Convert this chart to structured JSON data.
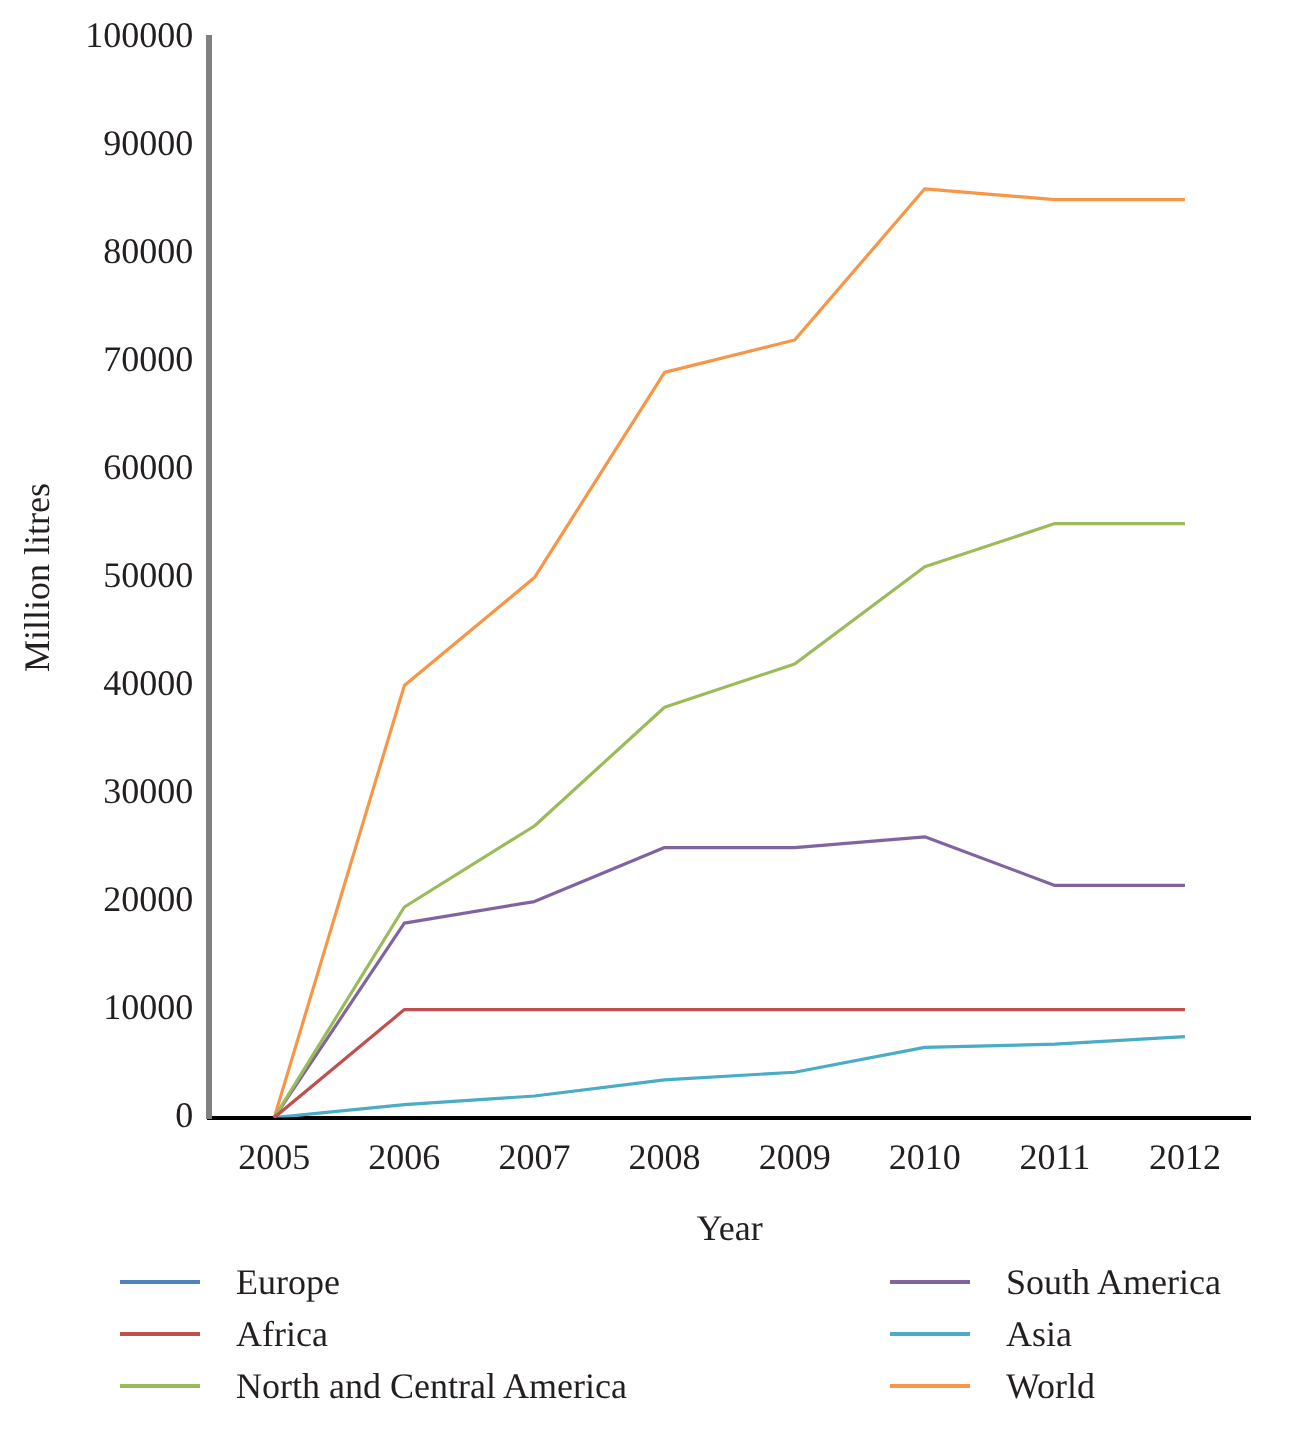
{
  "chart_data": {
    "type": "line",
    "xlabel": "Year",
    "ylabel": "Million litres",
    "categories": [
      "2005",
      "2006",
      "2007",
      "2008",
      "2009",
      "2010",
      "2011",
      "2012"
    ],
    "series": [
      {
        "name": "Europe",
        "color": "#4f81bd",
        "values": [
          null,
          null,
          null,
          null,
          null,
          null,
          null,
          null
        ]
      },
      {
        "name": "Africa",
        "color": "#c0504d",
        "values": [
          0,
          10000,
          10000,
          10000,
          10000,
          10000,
          10000,
          10000
        ]
      },
      {
        "name": "North and Central America",
        "color": "#9bbb59",
        "values": [
          0,
          19500,
          27000,
          38000,
          42000,
          51000,
          55000,
          55000
        ]
      },
      {
        "name": "South America",
        "color": "#8064a2",
        "values": [
          0,
          18000,
          20000,
          25000,
          25000,
          26000,
          21500,
          21500
        ]
      },
      {
        "name": "Asia",
        "color": "#4bacc6",
        "values": [
          0,
          1200,
          2000,
          3500,
          4200,
          6500,
          6800,
          7500
        ]
      },
      {
        "name": "World",
        "color": "#f79646",
        "values": [
          0,
          40000,
          50000,
          69000,
          72000,
          86000,
          85000,
          85000
        ]
      }
    ],
    "ylim": [
      0,
      100000
    ],
    "yticks": [
      0,
      10000,
      20000,
      30000,
      40000,
      50000,
      60000,
      70000,
      80000,
      90000,
      100000
    ],
    "grid": false,
    "legend": "bottom",
    "marker": "none",
    "line_style": "solid"
  }
}
